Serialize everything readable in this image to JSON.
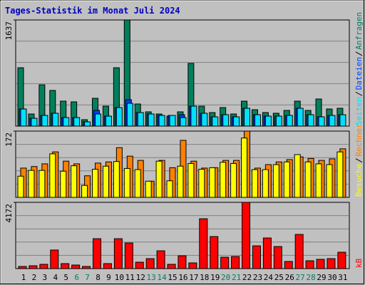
{
  "chart_data": [
    {
      "type": "bar",
      "title": "Tages-Statistik im Monat Juli 2024",
      "ylim": [
        0,
        1637
      ],
      "series": [
        {
          "name": "Anfragen",
          "color": "#00805c",
          "values": [
            900,
            187,
            637,
            550,
            385,
            374,
            99,
            429,
            308,
            900,
            1637,
            341,
            220,
            187,
            154,
            220,
            967,
            308,
            209,
            286,
            187,
            385,
            253,
            209,
            198,
            242,
            385,
            242,
            418,
            264,
            275
          ]
        },
        {
          "name": "Dateien",
          "color": "#0040ff",
          "values": [
            264,
            121,
            165,
            198,
            132,
            132,
            66,
            242,
            154,
            286,
            407,
            209,
            187,
            165,
            165,
            176,
            308,
            198,
            143,
            176,
            143,
            275,
            176,
            154,
            154,
            165,
            275,
            176,
            143,
            165,
            176
          ]
        },
        {
          "name": "Seiten",
          "color": "#00e0ff",
          "values": [
            264,
            121,
            165,
            198,
            132,
            132,
            66,
            187,
            154,
            286,
            352,
            209,
            187,
            165,
            165,
            132,
            308,
            198,
            143,
            176,
            143,
            275,
            176,
            154,
            154,
            165,
            275,
            176,
            143,
            165,
            176
          ]
        }
      ]
    },
    {
      "type": "bar",
      "ylim": [
        0,
        172
      ],
      "series": [
        {
          "name": "Rechner",
          "color": "#ff8000",
          "values": [
            76,
            80,
            87,
            118,
            94,
            87,
            56,
            89,
            92,
            129,
            107,
            96,
            42,
            96,
            77,
            148,
            94,
            76,
            77,
            96,
            96,
            172,
            76,
            85,
            92,
            98,
            105,
            101,
            96,
            100,
            126
          ]
        },
        {
          "name": "Besuche",
          "color": "#ffff00",
          "values": [
            55,
            70,
            70,
            113,
            68,
            82,
            31,
            73,
            81,
            93,
            75,
            72,
            42,
            94,
            43,
            81,
            88,
            73,
            77,
            91,
            88,
            154,
            72,
            72,
            85,
            92,
            111,
            92,
            87,
            85,
            118
          ]
        }
      ]
    },
    {
      "type": "bar",
      "ylim": [
        0,
        4172
      ],
      "categories": [
        "1",
        "2",
        "3",
        "4",
        "5",
        "6",
        "7",
        "8",
        "9",
        "10",
        "11",
        "12",
        "13",
        "14",
        "15",
        "16",
        "17",
        "18",
        "19",
        "20",
        "21",
        "22",
        "23",
        "24",
        "25",
        "26",
        "27",
        "28",
        "29",
        "30",
        "31"
      ],
      "category_colors": [
        "#000000",
        "#000000",
        "#000000",
        "#000000",
        "#000000",
        "#00805c",
        "#00805c",
        "#000000",
        "#000000",
        "#000000",
        "#000000",
        "#000000",
        "#00805c",
        "#00805c",
        "#000000",
        "#000000",
        "#000000",
        "#000000",
        "#000000",
        "#00805c",
        "#00805c",
        "#000000",
        "#000000",
        "#000000",
        "#000000",
        "#000000",
        "#00805c",
        "#00805c",
        "#000000",
        "#000000",
        "#000000"
      ],
      "series": [
        {
          "name": "kB",
          "color": "#ff0000",
          "values": [
            135,
            180,
            270,
            1170,
            315,
            225,
            135,
            1884,
            315,
            1884,
            1615,
            404,
            628,
            1121,
            270,
            807,
            359,
            3140,
            2018,
            718,
            763,
            4172,
            1435,
            1929,
            1390,
            449,
            2152,
            494,
            583,
            628,
            1032
          ]
        }
      ]
    }
  ]
}
